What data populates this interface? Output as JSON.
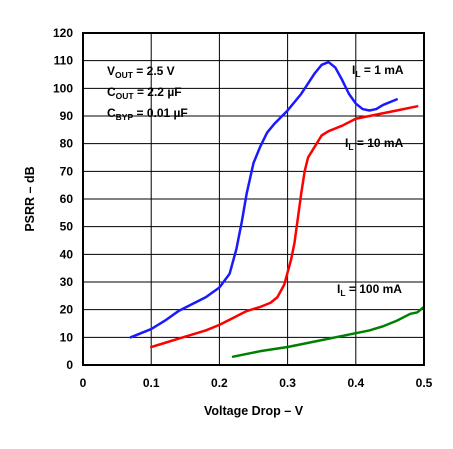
{
  "chart_data": {
    "type": "line",
    "xlabel": "Voltage Drop – V",
    "ylabel": "PSRR – dB",
    "xlim": [
      0,
      0.5
    ],
    "ylim": [
      0,
      120
    ],
    "x_ticks": [
      0,
      0.1,
      0.2,
      0.3,
      0.4,
      0.5
    ],
    "y_ticks": [
      0,
      10,
      20,
      30,
      40,
      50,
      60,
      70,
      80,
      90,
      100,
      110,
      120
    ],
    "x_tick_labels": [
      "0",
      "0.1",
      "0.2",
      "0.3",
      "0.4",
      "0.5"
    ],
    "y_tick_labels": [
      "0",
      "10",
      "20",
      "30",
      "40",
      "50",
      "60",
      "70",
      "80",
      "90",
      "100",
      "110",
      "120"
    ],
    "grid": true,
    "conditions": [
      {
        "main": "V",
        "sub": "OUT",
        "rest": " = 2.5 V"
      },
      {
        "main": "C",
        "sub": "OUT",
        "rest": " = 2.2 µF"
      },
      {
        "main": "C",
        "sub": "BYP",
        "rest": " = 0.01 µF"
      }
    ],
    "series": [
      {
        "label_main": "I",
        "label_sub": "L",
        "label_rest": " = 1 mA",
        "color": "#1a1aff",
        "points": [
          [
            0.07,
            10
          ],
          [
            0.1,
            13
          ],
          [
            0.12,
            16
          ],
          [
            0.14,
            19.5
          ],
          [
            0.16,
            22
          ],
          [
            0.18,
            24.5
          ],
          [
            0.2,
            28
          ],
          [
            0.215,
            33
          ],
          [
            0.225,
            42
          ],
          [
            0.233,
            52
          ],
          [
            0.24,
            62
          ],
          [
            0.25,
            73
          ],
          [
            0.26,
            79
          ],
          [
            0.27,
            84
          ],
          [
            0.28,
            87
          ],
          [
            0.3,
            92
          ],
          [
            0.32,
            98
          ],
          [
            0.34,
            105.5
          ],
          [
            0.35,
            108.5
          ],
          [
            0.36,
            109.5
          ],
          [
            0.37,
            107.5
          ],
          [
            0.38,
            103
          ],
          [
            0.39,
            98
          ],
          [
            0.4,
            94.5
          ],
          [
            0.41,
            92.5
          ],
          [
            0.42,
            92
          ],
          [
            0.43,
            92.5
          ],
          [
            0.44,
            94
          ],
          [
            0.46,
            96
          ]
        ]
      },
      {
        "label_main": "I",
        "label_sub": "L",
        "label_rest": " = 10 mA",
        "color": "#ff0000",
        "points": [
          [
            0.1,
            6.5
          ],
          [
            0.12,
            8
          ],
          [
            0.14,
            9.5
          ],
          [
            0.16,
            11
          ],
          [
            0.18,
            12.5
          ],
          [
            0.2,
            14.5
          ],
          [
            0.22,
            17
          ],
          [
            0.24,
            19.5
          ],
          [
            0.26,
            21
          ],
          [
            0.275,
            22.5
          ],
          [
            0.285,
            24.5
          ],
          [
            0.295,
            29
          ],
          [
            0.305,
            38
          ],
          [
            0.31,
            44
          ],
          [
            0.315,
            53
          ],
          [
            0.32,
            62
          ],
          [
            0.325,
            70
          ],
          [
            0.33,
            75
          ],
          [
            0.34,
            79
          ],
          [
            0.35,
            83
          ],
          [
            0.36,
            84.5
          ],
          [
            0.38,
            86.5
          ],
          [
            0.4,
            89
          ],
          [
            0.42,
            90
          ],
          [
            0.44,
            91
          ],
          [
            0.46,
            92
          ],
          [
            0.48,
            93
          ],
          [
            0.49,
            93.5
          ]
        ]
      },
      {
        "label_main": "I",
        "label_sub": "L",
        "label_rest": " = 100 mA",
        "color": "#008000",
        "points": [
          [
            0.22,
            3
          ],
          [
            0.26,
            5
          ],
          [
            0.3,
            6.5
          ],
          [
            0.34,
            8.5
          ],
          [
            0.38,
            10.5
          ],
          [
            0.4,
            11.5
          ],
          [
            0.42,
            12.5
          ],
          [
            0.44,
            14
          ],
          [
            0.46,
            16
          ],
          [
            0.48,
            18.5
          ],
          [
            0.49,
            19
          ],
          [
            0.5,
            21
          ],
          [
            0.505,
            22.5
          ]
        ]
      }
    ]
  }
}
